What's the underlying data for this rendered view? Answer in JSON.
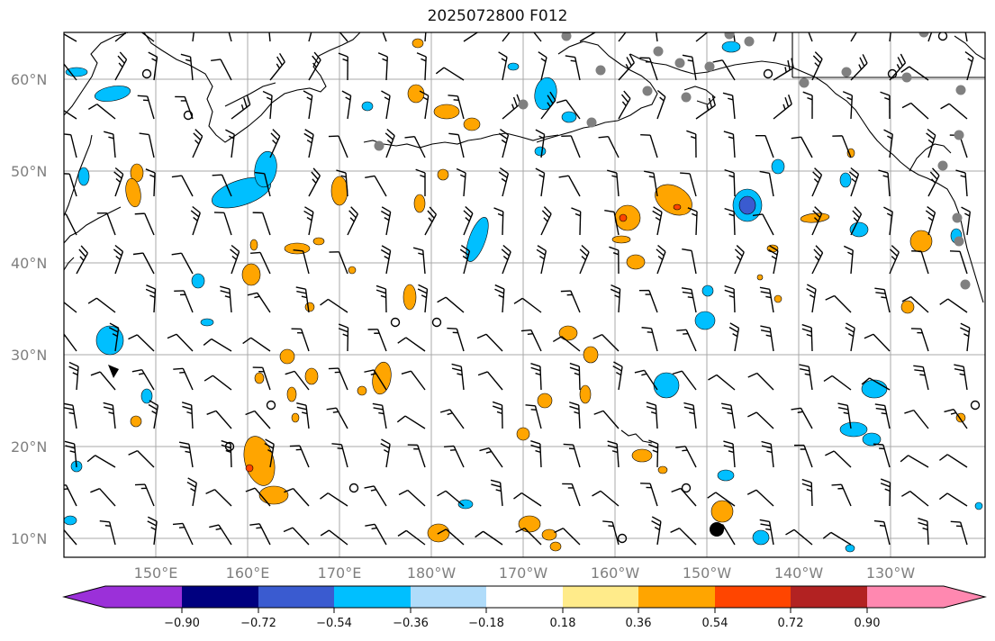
{
  "title": "2025072800 F012",
  "map": {
    "lat_labels": [
      "60°N",
      "50°N",
      "40°N",
      "30°N",
      "20°N",
      "10°N"
    ],
    "lon_labels": [
      "150°E",
      "160°E",
      "170°E",
      "180°W",
      "170°W",
      "160°W",
      "150°W",
      "140°W",
      "130°W"
    ],
    "grid_color": "#a8a8a8",
    "coastline_color": "#000000",
    "barb_color": "#000000"
  },
  "colorbar": {
    "ticks": [
      "−0.90",
      "−0.72",
      "−0.54",
      "−0.36",
      "−0.18",
      "0.18",
      "0.36",
      "0.54",
      "0.72",
      "0.90"
    ],
    "colors": [
      "#9b30d9",
      "#00007f",
      "#3a5bd0",
      "#00bfff",
      "#b0dcfa",
      "#ffffff",
      "#ffeb8a",
      "#ffa500",
      "#ff4500",
      "#b22222",
      "#ff88b0"
    ]
  },
  "station_markers": {
    "gray_filled": 22,
    "open_circles": 13,
    "black_filled": 1
  }
}
